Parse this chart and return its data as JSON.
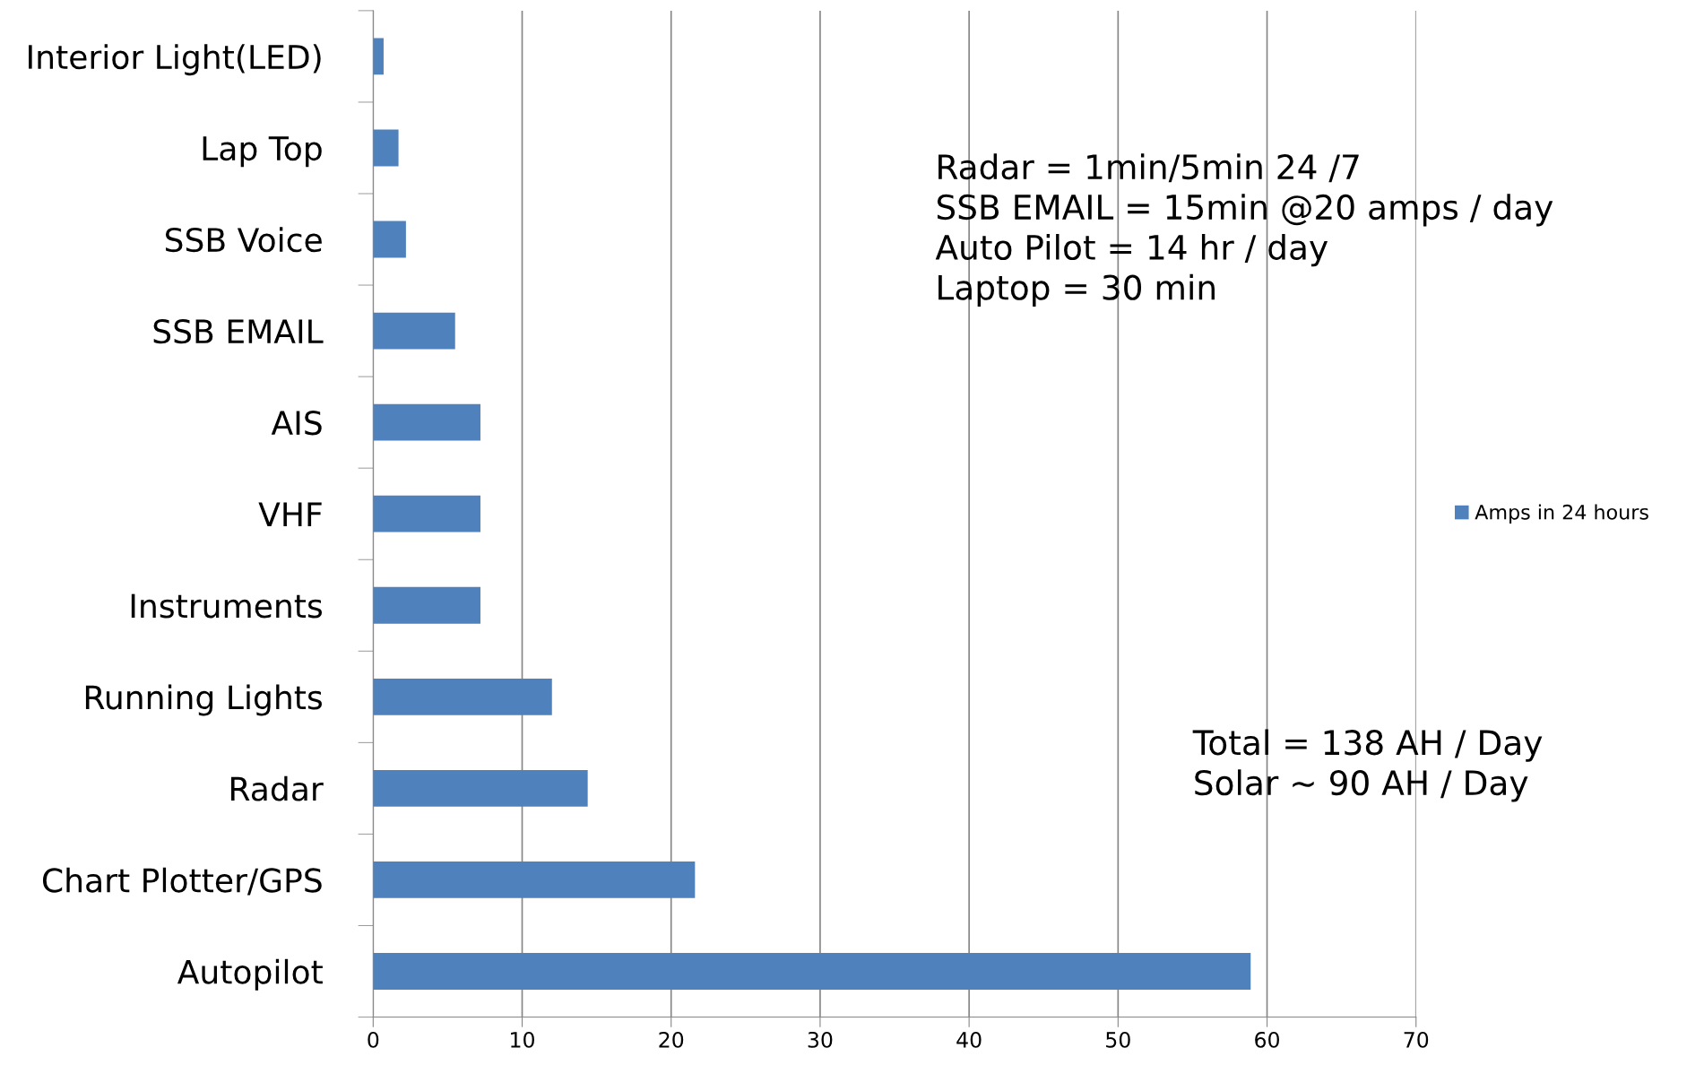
{
  "chart_data": {
    "type": "bar",
    "orientation": "horizontal",
    "categories": [
      "Interior Light(LED)",
      "Lap Top",
      "SSB Voice",
      "SSB EMAIL",
      "AIS",
      "VHF",
      "Instruments",
      "Running Lights",
      "Radar",
      "Chart Plotter/GPS",
      "Autopilot"
    ],
    "series": [
      {
        "name": "Amps in 24 hours",
        "color": "#4f81bd",
        "values": [
          0.7,
          1.7,
          2.2,
          5.5,
          7.2,
          7.2,
          7.2,
          12.0,
          14.4,
          21.6,
          58.9
        ]
      }
    ],
    "xlim": [
      0,
      70
    ],
    "xticks": [
      0,
      10,
      20,
      30,
      40,
      50,
      60,
      70
    ],
    "grid": "x",
    "legend": "right",
    "annotations": [
      "Radar = 1min/5min 24 /7\nSSB EMAIL = 15min @20 amps / day\nAuto Pilot = 14 hr / day\nLaptop = 30 min",
      "Total = 138 AH / Day\nSolar ~ 90 AH / Day"
    ]
  }
}
